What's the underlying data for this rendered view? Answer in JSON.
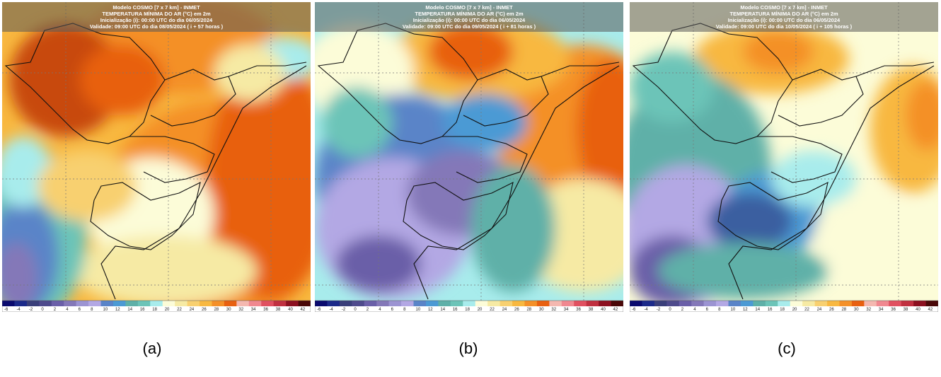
{
  "panels": [
    {
      "header": [
        "Modelo COSMO [7 x 7 km] - INMET",
        "TEMPERATURA MÍNIMA DO AR (°C) em 2m",
        "Inicialização (i): 00:00 UTC do dia 06/05/2024",
        "Validade: 09:00 UTC do dia 08/05/2024 ( i + 57 horas )"
      ],
      "caption": "(a)"
    },
    {
      "header": [
        "Modelo COSMO [7 x 7 km] - INMET",
        "TEMPERATURA MÍNIMA DO AR (°C) em 2m",
        "Inicialização (i): 00:00 UTC do dia 06/05/2024",
        "Validade: 09:00 UTC do dia 09/05/2024 ( i + 81 horas )"
      ],
      "caption": "(b)"
    },
    {
      "header": [
        "Modelo COSMO [7 x 7 km] - INMET",
        "TEMPERATURA MÍNIMA DO AR (°C) em 2m",
        "Inicialização (i): 00:00 UTC do dia 06/05/2024",
        "Validade: 09:00 UTC do dia 10/05/2024 ( i + 105 horas )"
      ],
      "caption": "(c)"
    }
  ],
  "colorbar": {
    "ticks": [
      -6,
      -4,
      -2,
      0,
      2,
      4,
      6,
      8,
      10,
      12,
      14,
      16,
      18,
      20,
      22,
      24,
      26,
      28,
      30,
      32,
      34,
      36,
      38,
      40,
      42
    ],
    "colors": [
      "#0a0a6e",
      "#1c2a8a",
      "#3a3f7a",
      "#4e4a8c",
      "#6a5fa8",
      "#8478b8",
      "#9c94d2",
      "#b3a8e4",
      "#5a84c8",
      "#4c9ad4",
      "#5eb0a8",
      "#6cc4b8",
      "#a8ecec",
      "#fcfcd8",
      "#f6eaa4",
      "#f8d070",
      "#f8b840",
      "#f49028",
      "#e86010",
      "#f4b8b0",
      "#f08890",
      "#e05060",
      "#c03040",
      "#8c1020",
      "#4a0808"
    ]
  }
}
